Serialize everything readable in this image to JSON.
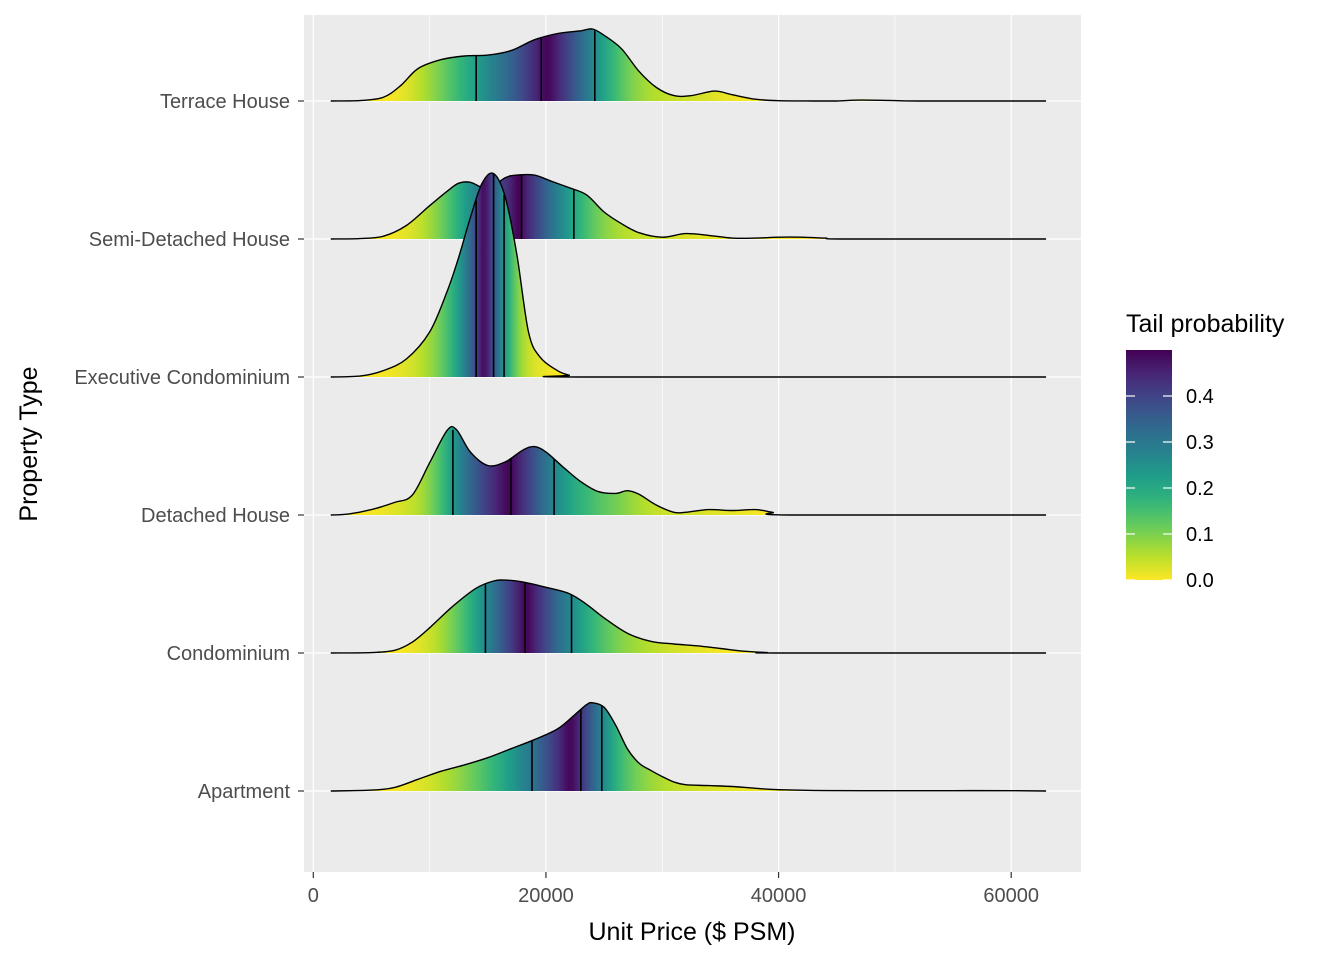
{
  "chart_data": {
    "type": "area",
    "subtype": "ridgeline-density",
    "xlabel": "Unit Price ($ PSM)",
    "ylabel": "Property Type",
    "xlim": [
      -800,
      66000
    ],
    "x_ticks": [
      0,
      20000,
      40000,
      60000
    ],
    "x_tick_labels": [
      "0",
      "20000",
      "40000",
      "60000"
    ],
    "grid": true,
    "fill_scale": "viridis (reversed)",
    "legend": {
      "title": "Tail probability",
      "placement": "right",
      "range": [
        0,
        0.5
      ],
      "ticks": [
        0.0,
        0.1,
        0.2,
        0.3,
        0.4
      ],
      "tick_labels": [
        "0.0",
        "0.1",
        "0.2",
        "0.3",
        "0.4"
      ]
    },
    "categories": [
      "Apartment",
      "Condominium",
      "Detached House",
      "Executive Condominium",
      "Semi-Detached House",
      "Terrace House"
    ],
    "series": [
      {
        "name": "Apartment",
        "x_range": [
          1500,
          63000
        ],
        "quartiles": [
          18800,
          23000,
          24800
        ],
        "density": [
          [
            1500,
            0
          ],
          [
            5000,
            0.01
          ],
          [
            7000,
            0.04
          ],
          [
            9000,
            0.13
          ],
          [
            11000,
            0.22
          ],
          [
            13000,
            0.29
          ],
          [
            15000,
            0.37
          ],
          [
            17000,
            0.47
          ],
          [
            19000,
            0.57
          ],
          [
            21000,
            0.69
          ],
          [
            22500,
            0.85
          ],
          [
            23500,
            0.96
          ],
          [
            24000,
            0.98
          ],
          [
            25000,
            0.93
          ],
          [
            26000,
            0.73
          ],
          [
            27000,
            0.47
          ],
          [
            28000,
            0.31
          ],
          [
            29000,
            0.23
          ],
          [
            30000,
            0.16
          ],
          [
            31000,
            0.1
          ],
          [
            32000,
            0.07
          ],
          [
            34000,
            0.06
          ],
          [
            36000,
            0.05
          ],
          [
            38000,
            0.03
          ],
          [
            40000,
            0.015
          ],
          [
            44000,
            0.005
          ],
          [
            50000,
            0.003
          ],
          [
            55000,
            0.004
          ],
          [
            60000,
            0.004
          ],
          [
            63000,
            0
          ]
        ]
      },
      {
        "name": "Condominium",
        "x_range": [
          1500,
          63000
        ],
        "quartiles": [
          14800,
          18200,
          22200
        ],
        "density": [
          [
            1500,
            0
          ],
          [
            5000,
            0.005
          ],
          [
            7000,
            0.03
          ],
          [
            8500,
            0.12
          ],
          [
            10000,
            0.28
          ],
          [
            12000,
            0.52
          ],
          [
            14000,
            0.72
          ],
          [
            15500,
            0.8
          ],
          [
            16500,
            0.81
          ],
          [
            18000,
            0.79
          ],
          [
            20000,
            0.73
          ],
          [
            22000,
            0.66
          ],
          [
            23500,
            0.54
          ],
          [
            25000,
            0.39
          ],
          [
            27000,
            0.22
          ],
          [
            29000,
            0.13
          ],
          [
            31000,
            0.1
          ],
          [
            33000,
            0.08
          ],
          [
            35000,
            0.05
          ],
          [
            37000,
            0.02
          ],
          [
            39000,
            0.005
          ],
          [
            40000,
            0
          ],
          [
            63000,
            0
          ]
        ]
      },
      {
        "name": "Detached House",
        "x_range": [
          1500,
          63000
        ],
        "quartiles": [
          12000,
          17000,
          20700
        ],
        "density": [
          [
            1500,
            0
          ],
          [
            3000,
            0.01
          ],
          [
            5000,
            0.06
          ],
          [
            7000,
            0.14
          ],
          [
            8500,
            0.22
          ],
          [
            10000,
            0.58
          ],
          [
            11500,
            0.94
          ],
          [
            12300,
            0.95
          ],
          [
            13500,
            0.7
          ],
          [
            15000,
            0.55
          ],
          [
            16500,
            0.59
          ],
          [
            18000,
            0.72
          ],
          [
            19000,
            0.76
          ],
          [
            20000,
            0.7
          ],
          [
            21500,
            0.53
          ],
          [
            23000,
            0.37
          ],
          [
            24500,
            0.26
          ],
          [
            26000,
            0.24
          ],
          [
            27000,
            0.27
          ],
          [
            28000,
            0.23
          ],
          [
            29500,
            0.11
          ],
          [
            31000,
            0.03
          ],
          [
            32000,
            0.03
          ],
          [
            34000,
            0.06
          ],
          [
            36000,
            0.05
          ],
          [
            38000,
            0.06
          ],
          [
            39500,
            0.03
          ],
          [
            41000,
            0
          ],
          [
            63000,
            0
          ]
        ]
      },
      {
        "name": "Executive Condominium",
        "x_range": [
          1500,
          63000
        ],
        "quartiles": [
          14000,
          15500,
          16400
        ],
        "density": [
          [
            1500,
            0
          ],
          [
            4000,
            0.01
          ],
          [
            6000,
            0.07
          ],
          [
            8000,
            0.2
          ],
          [
            10000,
            0.5
          ],
          [
            11500,
            0.95
          ],
          [
            12500,
            1.33
          ],
          [
            13500,
            1.77
          ],
          [
            14500,
            2.15
          ],
          [
            15500,
            2.26
          ],
          [
            16500,
            2.0
          ],
          [
            17500,
            1.36
          ],
          [
            18500,
            0.5
          ],
          [
            19500,
            0.22
          ],
          [
            21000,
            0.07
          ],
          [
            22000,
            0.02
          ],
          [
            23000,
            0
          ],
          [
            63000,
            0
          ]
        ]
      },
      {
        "name": "Semi-Detached House",
        "x_range": [
          1500,
          63000
        ],
        "quartiles": [
          15500,
          17900,
          22400
        ],
        "density": [
          [
            1500,
            0
          ],
          [
            4000,
            0.005
          ],
          [
            6000,
            0.03
          ],
          [
            8000,
            0.15
          ],
          [
            10000,
            0.37
          ],
          [
            11500,
            0.53
          ],
          [
            12500,
            0.62
          ],
          [
            13500,
            0.63
          ],
          [
            15000,
            0.56
          ],
          [
            16500,
            0.68
          ],
          [
            17500,
            0.71
          ],
          [
            19000,
            0.71
          ],
          [
            20500,
            0.64
          ],
          [
            22000,
            0.57
          ],
          [
            23500,
            0.49
          ],
          [
            25000,
            0.3
          ],
          [
            26500,
            0.17
          ],
          [
            28000,
            0.07
          ],
          [
            30000,
            0.02
          ],
          [
            32000,
            0.06
          ],
          [
            34000,
            0.04
          ],
          [
            36000,
            0.01
          ],
          [
            38000,
            0.01
          ],
          [
            40000,
            0.02
          ],
          [
            42000,
            0.02
          ],
          [
            44000,
            0.01
          ],
          [
            46000,
            0
          ],
          [
            63000,
            0
          ]
        ]
      },
      {
        "name": "Terrace House",
        "x_range": [
          1500,
          63000
        ],
        "quartiles": [
          14000,
          19600,
          24200
        ],
        "density": [
          [
            1500,
            0
          ],
          [
            4000,
            0.005
          ],
          [
            6000,
            0.04
          ],
          [
            7500,
            0.17
          ],
          [
            9000,
            0.36
          ],
          [
            11000,
            0.46
          ],
          [
            13000,
            0.5
          ],
          [
            15000,
            0.51
          ],
          [
            17000,
            0.56
          ],
          [
            19000,
            0.68
          ],
          [
            21000,
            0.75
          ],
          [
            23000,
            0.78
          ],
          [
            24000,
            0.8
          ],
          [
            25000,
            0.73
          ],
          [
            26500,
            0.58
          ],
          [
            28000,
            0.33
          ],
          [
            29500,
            0.15
          ],
          [
            31000,
            0.06
          ],
          [
            32500,
            0.06
          ],
          [
            34500,
            0.11
          ],
          [
            36000,
            0.07
          ],
          [
            38000,
            0.02
          ],
          [
            40000,
            0.003
          ],
          [
            43000,
            0
          ],
          [
            45000,
            0
          ],
          [
            47000,
            0.01
          ],
          [
            50000,
            0.005
          ],
          [
            52000,
            0
          ],
          [
            63000,
            0
          ]
        ]
      }
    ]
  }
}
